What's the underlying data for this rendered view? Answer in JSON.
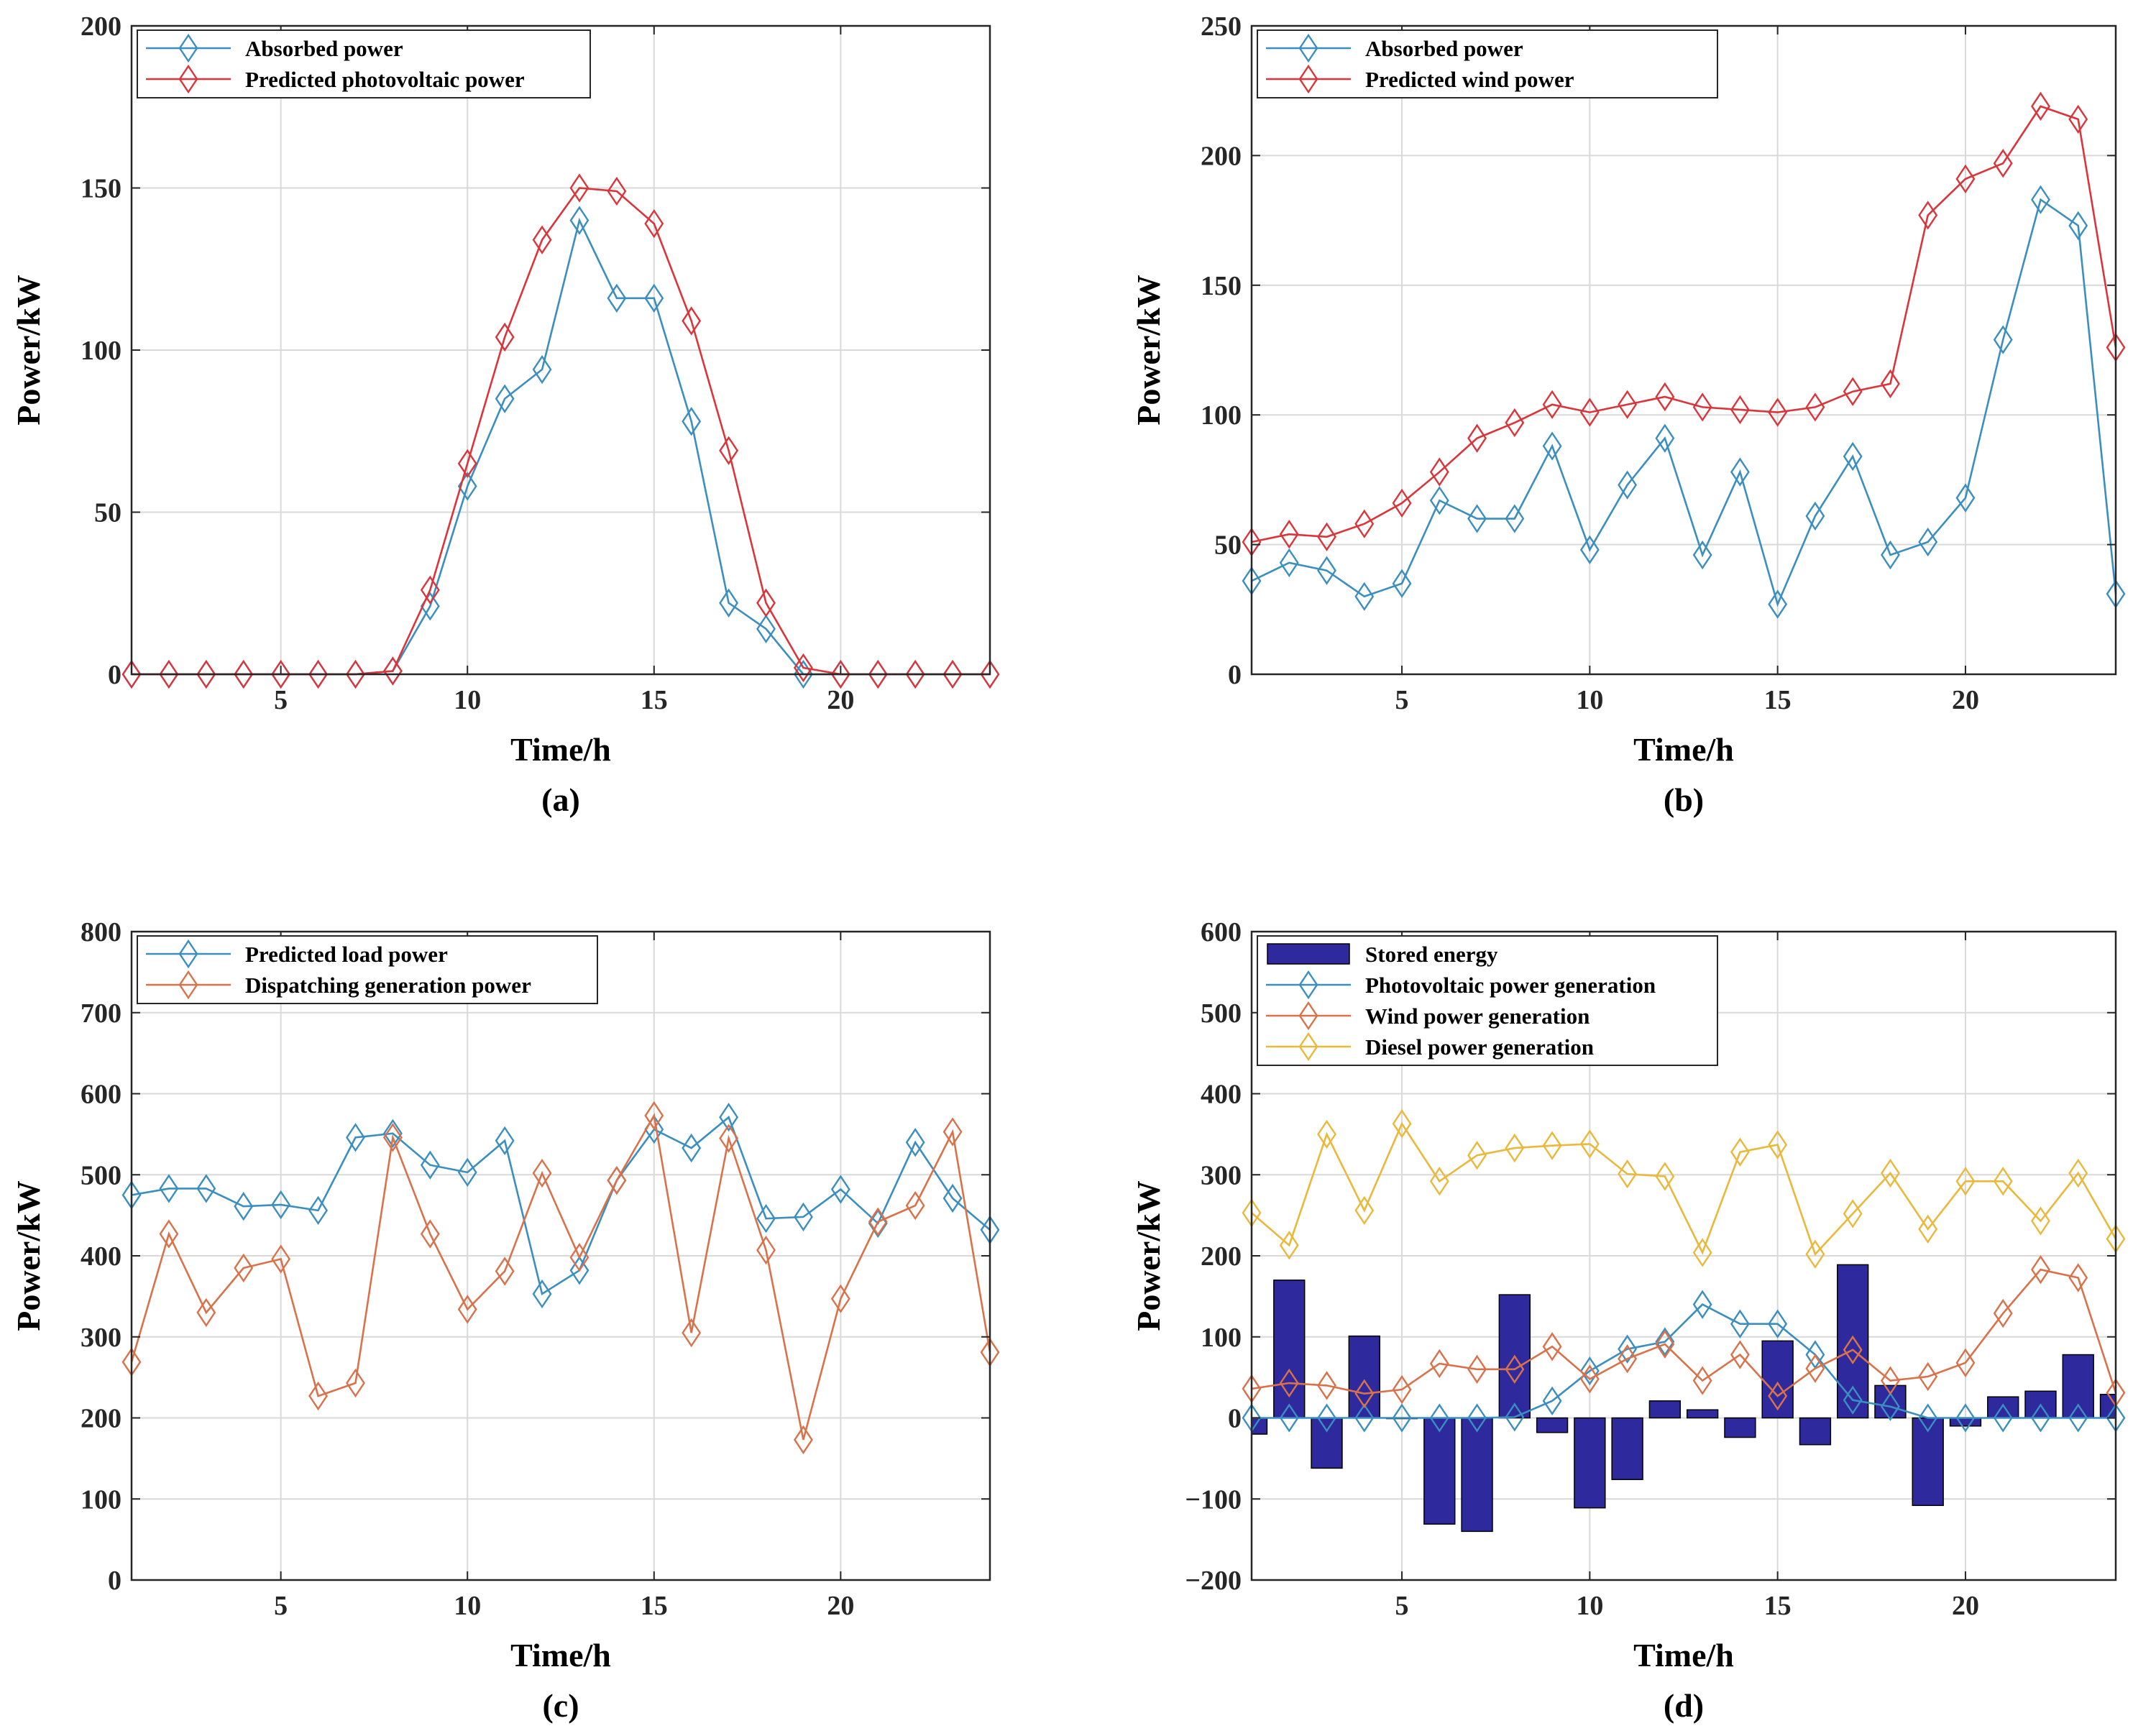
{
  "figure": {
    "panels": [
      {
        "caption": "(a)",
        "xlabel": "Time/h",
        "ylabel": "Power/kW",
        "xlim": [
          1,
          24
        ],
        "ylim": [
          0,
          200
        ],
        "xticks": [
          5,
          10,
          15,
          20
        ],
        "yticks": [
          0,
          50,
          100,
          150,
          200
        ],
        "ytick_labels": [
          "0",
          "50",
          "100",
          "150",
          "200"
        ],
        "grid": true
      },
      {
        "caption": "(b)",
        "xlabel": "Time/h",
        "ylabel": "Power/kW",
        "xlim": [
          1,
          24
        ],
        "ylim": [
          0,
          250
        ],
        "xticks": [
          5,
          10,
          15,
          20
        ],
        "yticks": [
          0,
          50,
          100,
          150,
          200,
          250
        ],
        "ytick_labels": [
          "0",
          "50",
          "100",
          "150",
          "200",
          "250"
        ],
        "grid": true
      },
      {
        "caption": "(c)",
        "xlabel": "Time/h",
        "ylabel": "Power/kW",
        "xlim": [
          1,
          24
        ],
        "ylim": [
          0,
          800
        ],
        "xticks": [
          5,
          10,
          15,
          20
        ],
        "yticks": [
          0,
          100,
          200,
          300,
          400,
          500,
          600,
          700,
          800
        ],
        "ytick_labels": [
          "0",
          "100",
          "200",
          "300",
          "400",
          "500",
          "600",
          "700",
          "800"
        ],
        "grid": true
      },
      {
        "caption": "(d)",
        "xlabel": "Time/h",
        "ylabel": "Power/kW",
        "xlim": [
          1,
          24
        ],
        "ylim": [
          -200,
          600
        ],
        "xticks": [
          5,
          10,
          15,
          20
        ],
        "yticks": [
          -200,
          -100,
          0,
          100,
          200,
          300,
          400,
          500,
          600
        ],
        "ytick_labels": [
          "−200",
          "−100",
          "0",
          "100",
          "200",
          "300",
          "400",
          "500",
          "600"
        ],
        "grid": true
      }
    ]
  },
  "chart_data": [
    {
      "type": "line",
      "title": "",
      "xlabel": "Time/h",
      "ylabel": "Power/kW",
      "xlim": [
        1,
        24
      ],
      "ylim": [
        0,
        200
      ],
      "legend_position": "top-left",
      "x": [
        1,
        2,
        3,
        4,
        5,
        6,
        7,
        8,
        9,
        10,
        11,
        12,
        13,
        14,
        15,
        16,
        17,
        18,
        19,
        20,
        21,
        22,
        23,
        24
      ],
      "series": [
        {
          "name": "Absorbed power",
          "color": "#3a8fc0",
          "marker": "diamond",
          "values": [
            0,
            0,
            0,
            0,
            0,
            0,
            0,
            1,
            21,
            58,
            85,
            94,
            140,
            116,
            116,
            78,
            22,
            14,
            0,
            0,
            0,
            0,
            0,
            0
          ]
        },
        {
          "name": "Predicted photovoltaic power",
          "color": "#d9353a",
          "marker": "diamond",
          "values": [
            0,
            0,
            0,
            0,
            0,
            0,
            0,
            1,
            26,
            65,
            104,
            134,
            150,
            149,
            139,
            109,
            69,
            22,
            2,
            0,
            0,
            0,
            0,
            0
          ]
        }
      ]
    },
    {
      "type": "line",
      "title": "",
      "xlabel": "Time/h",
      "ylabel": "Power/kW",
      "xlim": [
        1,
        24
      ],
      "ylim": [
        0,
        250
      ],
      "legend_position": "top-left",
      "x": [
        1,
        2,
        3,
        4,
        5,
        6,
        7,
        8,
        9,
        10,
        11,
        12,
        13,
        14,
        15,
        16,
        17,
        18,
        19,
        20,
        21,
        22,
        23,
        24
      ],
      "series": [
        {
          "name": "Absorbed power",
          "color": "#3a8fc0",
          "marker": "diamond",
          "values": [
            36,
            43,
            40,
            30,
            35,
            67,
            60,
            60,
            88,
            48,
            73,
            91,
            46,
            78,
            27,
            61,
            84,
            46,
            51,
            68,
            129,
            183,
            173,
            31
          ]
        },
        {
          "name": "Predicted wind power",
          "color": "#d9353a",
          "marker": "diamond",
          "values": [
            51,
            54,
            53,
            58,
            66,
            78,
            91,
            97,
            104,
            101,
            104,
            107,
            103,
            102,
            101,
            103,
            109,
            112,
            177,
            191,
            197,
            219,
            214,
            126
          ]
        }
      ]
    },
    {
      "type": "line",
      "title": "",
      "xlabel": "Time/h",
      "ylabel": "Power/kW",
      "xlim": [
        1,
        24
      ],
      "ylim": [
        0,
        800
      ],
      "legend_position": "top-left",
      "x": [
        1,
        2,
        3,
        4,
        5,
        6,
        7,
        8,
        9,
        10,
        11,
        12,
        13,
        14,
        15,
        16,
        17,
        18,
        19,
        20,
        21,
        22,
        23,
        24
      ],
      "series": [
        {
          "name": "Predicted load power",
          "color": "#3a8fc0",
          "marker": "diamond",
          "values": [
            475,
            483,
            483,
            461,
            463,
            456,
            546,
            551,
            512,
            503,
            542,
            353,
            382,
            493,
            556,
            533,
            571,
            446,
            448,
            482,
            440,
            540,
            471,
            432
          ]
        },
        {
          "name": "Dispatching generation power",
          "color": "#d9724a",
          "marker": "diamond",
          "values": [
            269,
            427,
            330,
            385,
            396,
            227,
            243,
            546,
            427,
            334,
            381,
            502,
            398,
            493,
            573,
            305,
            545,
            407,
            173,
            347,
            442,
            462,
            553,
            281
          ]
        }
      ]
    },
    {
      "type": "bar+line",
      "title": "",
      "xlabel": "Time/h",
      "ylabel": "Power/kW",
      "xlim": [
        1,
        24
      ],
      "ylim": [
        -200,
        600
      ],
      "legend_position": "top-left",
      "x": [
        1,
        2,
        3,
        4,
        5,
        6,
        7,
        8,
        9,
        10,
        11,
        12,
        13,
        14,
        15,
        16,
        17,
        18,
        19,
        20,
        21,
        22,
        23,
        24
      ],
      "bars": {
        "name": "Stored energy",
        "color": "#2e2a9e",
        "values": [
          -20,
          170,
          -62,
          101,
          0,
          -131,
          -140,
          152,
          -18,
          -111,
          -76,
          21,
          10,
          -24,
          95,
          -33,
          189,
          40,
          -108,
          -10,
          26,
          33,
          78,
          29
        ]
      },
      "series": [
        {
          "name": "Photovoltaic power generation",
          "color": "#3a8fc0",
          "marker": "diamond",
          "values": [
            0,
            0,
            0,
            0,
            0,
            0,
            0,
            1,
            21,
            58,
            85,
            94,
            140,
            116,
            116,
            78,
            22,
            14,
            0,
            0,
            0,
            0,
            0,
            0
          ]
        },
        {
          "name": "Wind power generation",
          "color": "#d9724a",
          "marker": "diamond",
          "values": [
            36,
            43,
            40,
            30,
            35,
            67,
            60,
            60,
            88,
            48,
            73,
            91,
            46,
            78,
            27,
            61,
            84,
            46,
            51,
            68,
            129,
            183,
            173,
            31
          ]
        },
        {
          "name": "Diesel power generation",
          "color": "#eab83a",
          "marker": "diamond",
          "values": [
            253,
            213,
            350,
            256,
            363,
            292,
            324,
            333,
            336,
            338,
            301,
            298,
            204,
            328,
            337,
            202,
            252,
            302,
            233,
            292,
            292,
            243,
            302,
            221
          ]
        }
      ]
    }
  ]
}
